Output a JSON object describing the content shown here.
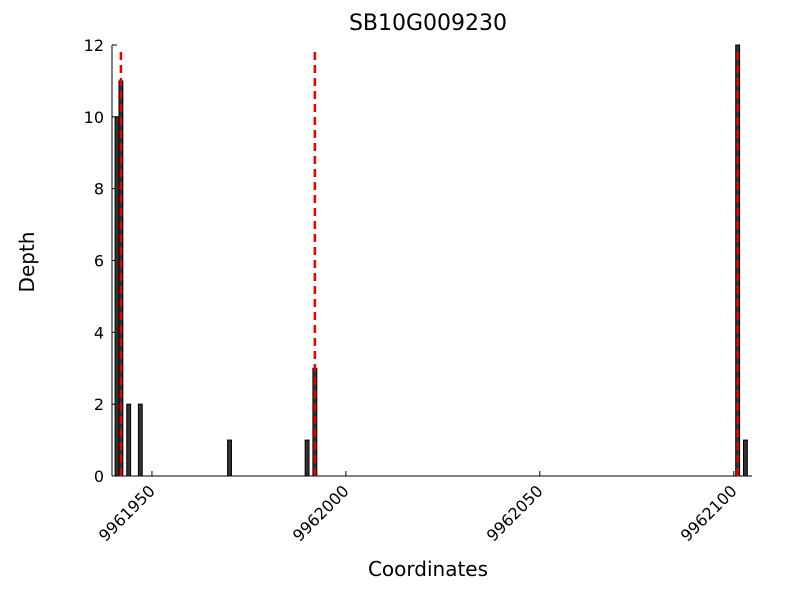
{
  "chart_data": {
    "type": "bar",
    "title": "SB10G009230",
    "x_label": "Coordinates",
    "y_label": "Depth",
    "x": [
      9961941,
      9961942,
      9961944,
      9961947,
      9961970,
      9961990,
      9961992,
      9962101,
      9962103
    ],
    "values": [
      10,
      11,
      2,
      2,
      1,
      1,
      3,
      12,
      1
    ],
    "color": "#333333",
    "vlines": {
      "x": [
        9961942,
        9961992,
        9962101
      ],
      "color": "#ee0000"
    },
    "xlim": [
      9961939.7,
      9962104.7
    ],
    "xticks": [
      9961950,
      9962000,
      9962050,
      9962100
    ],
    "ylim": [
      0,
      12
    ],
    "yticks": [
      0,
      2,
      4,
      6,
      8,
      10,
      12
    ]
  }
}
